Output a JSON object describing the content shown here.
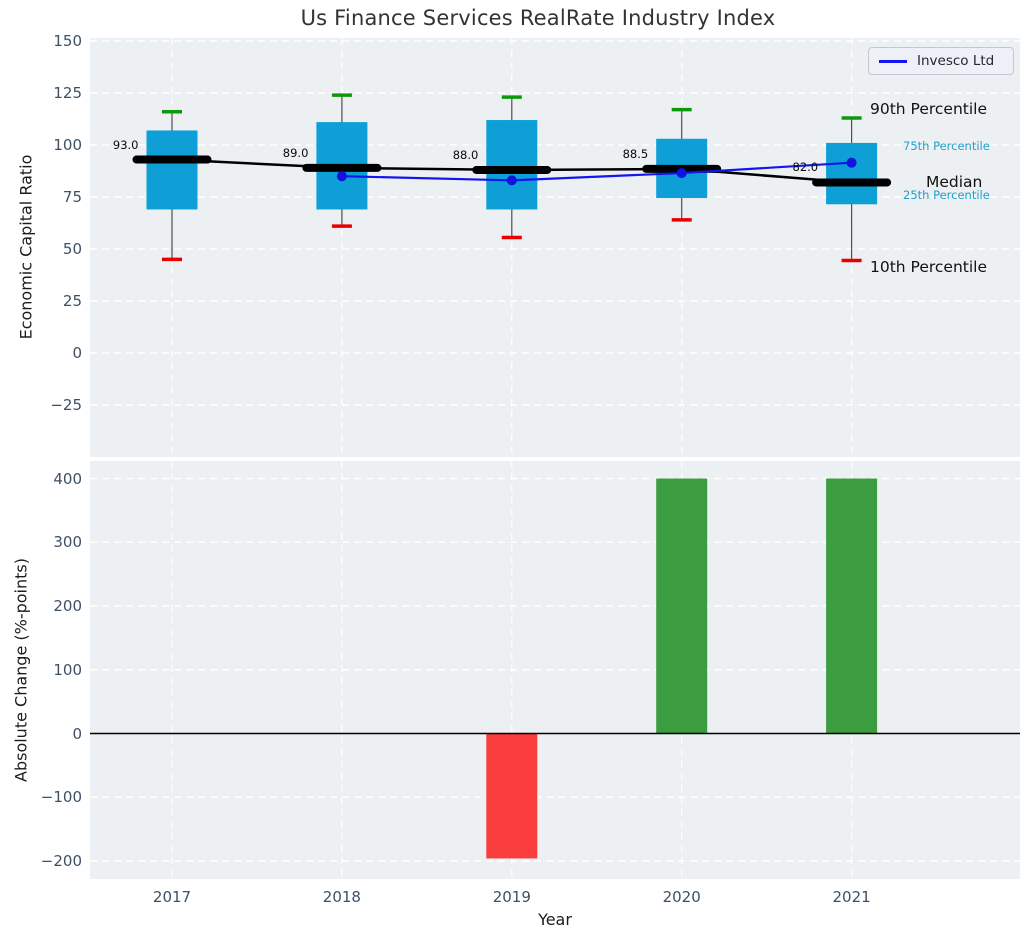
{
  "title": "Us Finance Services RealRate Industry Index",
  "colors": {
    "plot_bg": "#edf0f2",
    "grid": "#ffffff",
    "box_fill": "#0d9fd6",
    "whisker_line": "#4d4d4d",
    "cap_90th": "#0b9a0b",
    "cap_10th": "#e80000",
    "median_line": "#000000",
    "series_line": "#1414f0",
    "series_dot": "#1111e0",
    "tick_text": "#3d5166",
    "bar_positive": "#3c9d40",
    "bar_negative": "#f93c3c",
    "percentile_label_small": "#1f9fcb"
  },
  "legend": {
    "label": "Invesco Ltd",
    "position": "upper right"
  },
  "chart_data": [
    {
      "type": "box",
      "title": "Us Finance Services RealRate Industry Index",
      "ylabel": "Economic Capital Ratio",
      "categories": [
        "2017",
        "2018",
        "2019",
        "2020",
        "2021"
      ],
      "yticks": [
        150,
        125,
        100,
        75,
        50,
        25,
        0,
        -25
      ],
      "ylim": [
        -50,
        151.5
      ],
      "grid": true,
      "boxes": [
        {
          "year": "2017",
          "p10": 45,
          "p25": 69,
          "median": 93.0,
          "p75": 107,
          "p90": 116
        },
        {
          "year": "2018",
          "p10": 61,
          "p25": 69,
          "median": 89.0,
          "p75": 111,
          "p90": 124
        },
        {
          "year": "2019",
          "p10": 55.5,
          "p25": 69,
          "median": 88.0,
          "p75": 112,
          "p90": 123
        },
        {
          "year": "2020",
          "p10": 64,
          "p25": 74.5,
          "median": 88.5,
          "p75": 103,
          "p90": 117
        },
        {
          "year": "2021",
          "p10": 44.5,
          "p25": 71.5,
          "median": 82.0,
          "p75": 101,
          "p90": 113
        }
      ],
      "median_labels": [
        "93.0",
        "89.0",
        "88.0",
        "88.5",
        "82.0"
      ],
      "series": [
        {
          "name": "Invesco Ltd",
          "x": [
            "2018",
            "2019",
            "2020",
            "2021"
          ],
          "values": [
            85,
            83,
            86.5,
            91.5
          ]
        }
      ],
      "annotations": [
        {
          "label": "90th Percentile",
          "size": "large",
          "anchor": "p90"
        },
        {
          "label": "75th Percentile",
          "size": "small",
          "anchor": "p75"
        },
        {
          "label": "Median",
          "size": "large",
          "anchor": "median"
        },
        {
          "label": "25th Percentile",
          "size": "small",
          "anchor": "p25"
        },
        {
          "label": "10th Percentile",
          "size": "large",
          "anchor": "p10"
        }
      ],
      "legend_entries": [
        "Invesco Ltd"
      ]
    },
    {
      "type": "bar",
      "ylabel": "Absolute Change (%-points)",
      "xlabel": "Year",
      "categories": [
        "2017",
        "2018",
        "2019",
        "2020",
        "2021"
      ],
      "values": [
        null,
        null,
        -196,
        400,
        400
      ],
      "yticks": [
        400,
        300,
        200,
        100,
        0,
        -100,
        -200
      ],
      "ylim": [
        -228,
        428
      ],
      "grid": true,
      "zero_line": 0
    }
  ]
}
